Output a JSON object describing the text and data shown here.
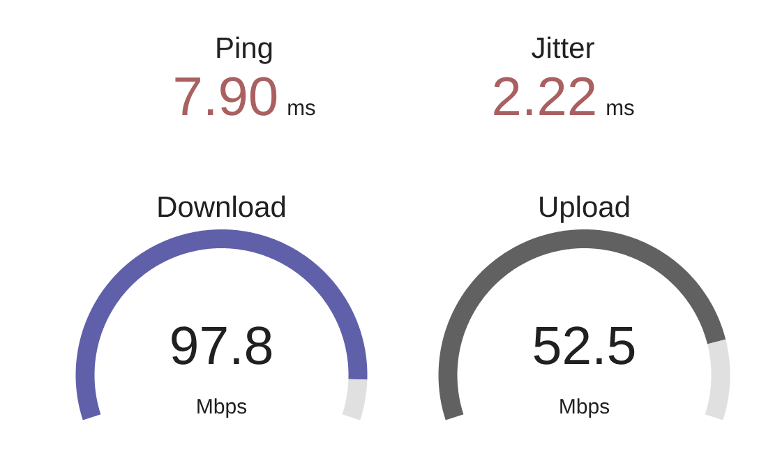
{
  "chart_data": [
    {
      "type": "other",
      "title": "Ping",
      "annotations": [
        "7.90",
        "ms"
      ]
    },
    {
      "type": "other",
      "title": "Jitter",
      "annotations": [
        "2.22",
        "ms"
      ]
    },
    {
      "type": "donut",
      "title": "Download",
      "categories": [
        null,
        null
      ],
      "values": [
        92.5,
        7.5
      ],
      "colors": [
        "#6060aa",
        "#e0e0e0"
      ],
      "annotations": [
        "97.8",
        "Mbps"
      ]
    },
    {
      "type": "donut",
      "title": "Upload",
      "categories": [
        null,
        null
      ],
      "values": [
        85.1,
        14.9
      ],
      "colors": [
        "#616161",
        "#e0e0e0"
      ],
      "annotations": [
        "52.5",
        "Mbps"
      ]
    }
  ]
}
